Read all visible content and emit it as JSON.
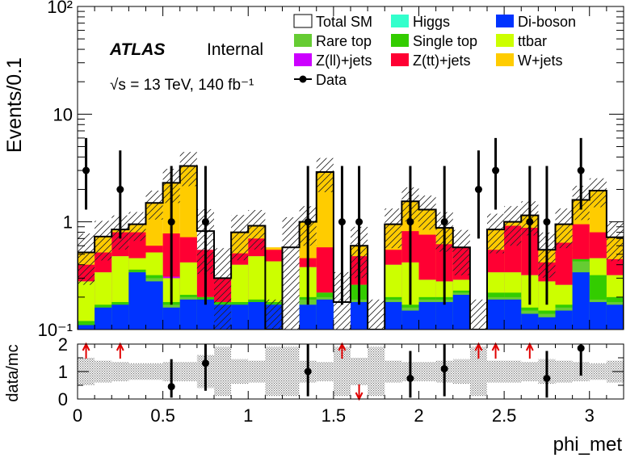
{
  "chart_data": {
    "type": "bar",
    "stacked": true,
    "xlabel": "phi_met",
    "ylabel": "Events/0.1",
    "ratio_ylabel": "data/mc",
    "atlas_label": "ATLAS",
    "atlas_status": "Internal",
    "energy_label": "√s = 13 TeV, 140 fb⁻¹",
    "xlim": [
      0,
      3.2
    ],
    "ylim": [
      0.1,
      100
    ],
    "yscale": "log",
    "ratio_ylim": [
      0,
      2
    ],
    "x_ticks": [
      "0",
      "0.5",
      "1",
      "1.5",
      "2",
      "2.5",
      "3"
    ],
    "x_tick_values": [
      0,
      0.5,
      1,
      1.5,
      2,
      2.5,
      3
    ],
    "y_ticks": [
      "10⁻¹",
      "1",
      "10",
      "10²"
    ],
    "y_tick_values": [
      0.1,
      1,
      10,
      100
    ],
    "ratio_ticks": [
      "0",
      "1",
      "2"
    ],
    "ratio_tick_values": [
      0,
      1,
      2
    ],
    "bin_width": 0.1,
    "bins": [
      0.0,
      0.1,
      0.2,
      0.3,
      0.4,
      0.5,
      0.6,
      0.7,
      0.8,
      0.9,
      1.0,
      1.1,
      1.2,
      1.3,
      1.4,
      1.5,
      1.6,
      1.7,
      1.8,
      1.9,
      2.0,
      2.1,
      2.2,
      2.3,
      2.4,
      2.5,
      2.6,
      2.7,
      2.8,
      2.9,
      3.0,
      3.1
    ],
    "legend": [
      {
        "name": "Total SM",
        "color": "#ffffff",
        "style": "box"
      },
      {
        "name": "Higgs",
        "color": "#33ffcc",
        "style": "fill"
      },
      {
        "name": "Di-boson",
        "color": "#0033ff",
        "style": "fill"
      },
      {
        "name": "Rare top",
        "color": "#66cc33",
        "style": "fill"
      },
      {
        "name": "Single top",
        "color": "#33cc00",
        "style": "fill"
      },
      {
        "name": "ttbar",
        "color": "#ccff00",
        "style": "fill"
      },
      {
        "name": "Z(ll)+jets",
        "color": "#cc00ff",
        "style": "fill"
      },
      {
        "name": "Z(tt)+jets",
        "color": "#ff0033",
        "style": "fill"
      },
      {
        "name": "W+jets",
        "color": "#ffcc00",
        "style": "fill"
      },
      {
        "name": "Data",
        "color": "#000000",
        "style": "marker"
      }
    ],
    "series": [
      {
        "name": "Higgs",
        "color": "#33ffcc",
        "values": [
          0.1,
          0.1,
          0.1,
          0.1,
          0.1,
          0.1,
          0.1,
          0.1,
          0,
          0,
          0.1,
          0.1,
          0,
          0.1,
          0,
          0,
          0,
          0,
          0.1,
          0.1,
          0.1,
          0.1,
          0.1,
          0,
          0.1,
          0.1,
          0.1,
          0.1,
          0.1,
          0.1,
          0.1,
          0.1
        ]
      },
      {
        "name": "Di-boson",
        "color": "#0033ff",
        "values": [
          0.11,
          0.16,
          0.17,
          0.34,
          0.28,
          0.16,
          0.19,
          0.19,
          0.17,
          0.17,
          0.18,
          0.17,
          0,
          0.17,
          0.19,
          0,
          0.18,
          0,
          0.18,
          0.15,
          0.18,
          0.18,
          0.21,
          0,
          0.19,
          0.19,
          0.14,
          0.13,
          0.15,
          0.34,
          0.18,
          0.17
        ]
      },
      {
        "name": "Rare top",
        "color": "#66cc33",
        "values": [
          0.11,
          0.16,
          0.17,
          0.34,
          0.3,
          0.17,
          0.2,
          0.19,
          0.17,
          0.17,
          0.18,
          0.17,
          0,
          0.19,
          0.2,
          0,
          0.19,
          0,
          0.19,
          0.16,
          0.19,
          0.19,
          0.22,
          0,
          0.2,
          0.2,
          0.15,
          0.14,
          0.16,
          0.43,
          0.19,
          0.18
        ]
      },
      {
        "name": "Single top",
        "color": "#33cc00",
        "values": [
          0.12,
          0.17,
          0.18,
          0.36,
          0.32,
          0.18,
          0.21,
          0.2,
          0.18,
          0.18,
          0.19,
          0.18,
          0,
          0.2,
          0.22,
          0,
          0.26,
          0,
          0.2,
          0.17,
          0.2,
          0.2,
          0.23,
          0,
          0.22,
          0.22,
          0.16,
          0.15,
          0.17,
          0.45,
          0.32,
          0.2
        ]
      },
      {
        "name": "ttbar",
        "color": "#ccff00",
        "values": [
          0.28,
          0.34,
          0.48,
          0.46,
          0.52,
          0.3,
          0.42,
          0.2,
          0.18,
          0.4,
          0.48,
          0.43,
          0,
          0.38,
          0.22,
          0,
          0.26,
          0,
          0.4,
          0.42,
          0.29,
          0.28,
          0.29,
          0,
          0.34,
          0.34,
          0.32,
          0.28,
          0.26,
          0.45,
          0.46,
          0.32
        ]
      },
      {
        "name": "Z(ll)+jets",
        "color": "#cc00ff",
        "values": [
          0.28,
          0.34,
          0.48,
          0.46,
          0.52,
          0.31,
          0.42,
          0.2,
          0.18,
          0.4,
          0.48,
          0.43,
          0,
          0.38,
          0.22,
          0,
          0.26,
          0,
          0.4,
          0.42,
          0.29,
          0.28,
          0.29,
          0,
          0.34,
          0.34,
          0.32,
          0.28,
          0.26,
          0.45,
          0.46,
          0.32
        ]
      },
      {
        "name": "Z(tt)+jets",
        "color": "#ff0033",
        "values": [
          0.4,
          0.52,
          0.8,
          0.8,
          0.6,
          0.78,
          0.72,
          0.55,
          0.3,
          0.51,
          0.7,
          0.55,
          0,
          0.46,
          0.58,
          0,
          0.48,
          0,
          0.55,
          0.82,
          0.76,
          0.62,
          0.58,
          0,
          0.55,
          0.92,
          0.88,
          0.42,
          0.64,
          0.95,
          0.8,
          0.45
        ]
      },
      {
        "name": "W+jets",
        "color": "#ffcc00",
        "values": [
          0.52,
          0.73,
          0.85,
          0.95,
          1.5,
          2.3,
          3.3,
          0,
          0.3,
          0.8,
          0.92,
          0.58,
          0,
          1.0,
          2.9,
          0,
          0.6,
          0,
          0.95,
          1.55,
          1.3,
          0.88,
          0.58,
          0,
          0.85,
          1.0,
          1.15,
          0.55,
          0.95,
          1.6,
          1.95,
          0.72
        ]
      }
    ],
    "total_sm": [
      0.52,
      0.73,
      0.85,
      0.95,
      1.5,
      2.3,
      3.3,
      0.82,
      0.3,
      0.8,
      0.92,
      0.1,
      0.58,
      1.0,
      2.9,
      0.18,
      0.6,
      0.1,
      0.95,
      1.55,
      1.3,
      0.88,
      0.58,
      0.1,
      0.85,
      1.0,
      1.15,
      0.55,
      0.95,
      1.6,
      1.95,
      0.72
    ],
    "data": [
      {
        "x": 0.05,
        "y": 3.0,
        "err_low": 1.7,
        "err_high": 3.0
      },
      {
        "x": 0.25,
        "y": 2.0,
        "err_low": 1.3,
        "err_high": 2.6
      },
      {
        "x": 0.55,
        "y": 1.0,
        "err_low": 0.83,
        "err_high": 2.3
      },
      {
        "x": 0.75,
        "y": 1.0,
        "err_low": 0.83,
        "err_high": 2.3
      },
      {
        "x": 1.35,
        "y": 1.0,
        "err_low": 0.83,
        "err_high": 2.3
      },
      {
        "x": 1.55,
        "y": 1.0,
        "err_low": 0.83,
        "err_high": 2.3
      },
      {
        "x": 1.65,
        "y": 1.0,
        "err_low": 0.83,
        "err_high": 2.3
      },
      {
        "x": 1.95,
        "y": 1.0,
        "err_low": 0.83,
        "err_high": 2.3
      },
      {
        "x": 2.15,
        "y": 1.0,
        "err_low": 0.83,
        "err_high": 2.3
      },
      {
        "x": 2.35,
        "y": 2.0,
        "err_low": 1.3,
        "err_high": 2.6
      },
      {
        "x": 2.45,
        "y": 3.0,
        "err_low": 1.7,
        "err_high": 3.0
      },
      {
        "x": 2.65,
        "y": 1.0,
        "err_low": 0.83,
        "err_high": 2.3
      },
      {
        "x": 2.75,
        "y": 1.0,
        "err_low": 0.83,
        "err_high": 2.3
      },
      {
        "x": 2.95,
        "y": 3.0,
        "err_low": 1.7,
        "err_high": 3.0
      }
    ],
    "ratio": [
      {
        "x": 0.55,
        "y": 0.45,
        "err_low": 0.4,
        "err_high": 1.0
      },
      {
        "x": 0.75,
        "y": 1.3,
        "err_low": 1.0,
        "err_high": 1.0
      },
      {
        "x": 1.35,
        "y": 1.0,
        "err_low": 0.9,
        "err_high": 1.0
      },
      {
        "x": 1.95,
        "y": 0.75,
        "err_low": 0.7,
        "err_high": 1.0
      },
      {
        "x": 2.15,
        "y": 1.1,
        "err_low": 1.0,
        "err_high": 1.0
      },
      {
        "x": 2.75,
        "y": 0.75,
        "err_low": 0.7,
        "err_high": 1.0
      },
      {
        "x": 2.95,
        "y": 1.85,
        "err_low": 1.0,
        "err_high": 1.0
      }
    ],
    "ratio_up_arrows": [
      0.05,
      0.25,
      1.55,
      2.35,
      2.45,
      2.65
    ],
    "ratio_down_arrows": [
      1.65
    ],
    "mc_uncertainty_fraction": [
      0.5,
      0.4,
      0.35,
      0.3,
      0.3,
      0.35,
      0.35,
      0.6,
      0.9,
      0.45,
      0.4,
      0.9,
      0.9,
      0.4,
      0.35,
      0.9,
      0.5,
      0.9,
      0.4,
      0.35,
      0.35,
      0.4,
      0.45,
      0.9,
      0.4,
      0.4,
      0.35,
      0.45,
      0.4,
      0.35,
      0.3,
      0.4
    ]
  }
}
